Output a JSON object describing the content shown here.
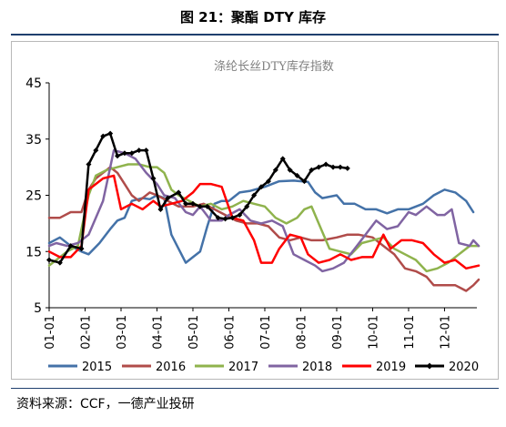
{
  "figure": {
    "title": "图 21：聚酯 DTY 库存",
    "source": "资料来源：CCF，一德产业投研"
  },
  "chart_data": {
    "type": "line",
    "title": "涤纶长丝DTY库存指数",
    "xlabel": "",
    "ylabel": "",
    "ylim": [
      5,
      45
    ],
    "yticks": [
      5,
      15,
      25,
      35,
      45
    ],
    "x_ticks": [
      "01-01",
      "02-01",
      "03-01",
      "04-01",
      "05-01",
      "06-01",
      "07-01",
      "08-01",
      "09-01",
      "10-01",
      "11-01",
      "12-01"
    ],
    "x_domain": [
      1,
      12.9
    ],
    "grid": false,
    "legend": "bottom",
    "series": [
      {
        "name": "2015",
        "color": "#4472a8",
        "points": [
          [
            1.0,
            16.5
          ],
          [
            1.3,
            17.5
          ],
          [
            1.6,
            16.0
          ],
          [
            1.9,
            15.0
          ],
          [
            2.1,
            14.5
          ],
          [
            2.4,
            16.5
          ],
          [
            2.7,
            19.0
          ],
          [
            2.9,
            20.5
          ],
          [
            3.1,
            21.0
          ],
          [
            3.3,
            24.0
          ],
          [
            3.6,
            24.5
          ],
          [
            3.8,
            24.3
          ],
          [
            4.0,
            25.0
          ],
          [
            4.2,
            24.5
          ],
          [
            4.4,
            18.0
          ],
          [
            4.6,
            15.5
          ],
          [
            4.8,
            13.0
          ],
          [
            5.0,
            14.0
          ],
          [
            5.2,
            15.0
          ],
          [
            5.4,
            19.5
          ],
          [
            5.6,
            23.5
          ],
          [
            5.8,
            24.0
          ],
          [
            6.0,
            24.0
          ],
          [
            6.3,
            25.5
          ],
          [
            6.6,
            25.8
          ],
          [
            7.0,
            26.5
          ],
          [
            7.4,
            27.5
          ],
          [
            7.8,
            27.6
          ],
          [
            8.2,
            27.4
          ],
          [
            8.4,
            25.5
          ],
          [
            8.6,
            24.5
          ],
          [
            9.0,
            25.0
          ],
          [
            9.2,
            23.5
          ],
          [
            9.5,
            23.5
          ],
          [
            9.8,
            22.5
          ],
          [
            10.1,
            22.5
          ],
          [
            10.4,
            21.8
          ],
          [
            10.7,
            22.5
          ],
          [
            11.0,
            22.5
          ],
          [
            11.4,
            23.5
          ],
          [
            11.7,
            25.0
          ],
          [
            12.0,
            26.0
          ],
          [
            12.3,
            25.5
          ],
          [
            12.6,
            24.0
          ],
          [
            12.8,
            22.0
          ]
        ]
      },
      {
        "name": "2016",
        "color": "#b04c4a",
        "points": [
          [
            1.0,
            21.0
          ],
          [
            1.3,
            21.0
          ],
          [
            1.6,
            22.0
          ],
          [
            1.9,
            22.0
          ],
          [
            2.1,
            26.0
          ],
          [
            2.3,
            28.0
          ],
          [
            2.5,
            29.0
          ],
          [
            2.7,
            30.0
          ],
          [
            2.9,
            29.0
          ],
          [
            3.1,
            27.0
          ],
          [
            3.3,
            25.0
          ],
          [
            3.5,
            24.0
          ],
          [
            3.8,
            25.5
          ],
          [
            4.0,
            25.0
          ],
          [
            4.3,
            24.0
          ],
          [
            4.6,
            23.0
          ],
          [
            5.0,
            23.0
          ],
          [
            5.3,
            23.5
          ],
          [
            5.6,
            22.5
          ],
          [
            5.9,
            21.5
          ],
          [
            6.2,
            20.5
          ],
          [
            6.5,
            20.0
          ],
          [
            6.8,
            20.0
          ],
          [
            7.1,
            19.5
          ],
          [
            7.4,
            17.5
          ],
          [
            7.7,
            17.0
          ],
          [
            8.0,
            17.5
          ],
          [
            8.3,
            17.0
          ],
          [
            8.6,
            17.0
          ],
          [
            9.0,
            17.5
          ],
          [
            9.3,
            18.0
          ],
          [
            9.6,
            18.0
          ],
          [
            10.0,
            17.5
          ],
          [
            10.3,
            16.0
          ],
          [
            10.6,
            14.5
          ],
          [
            10.9,
            12.0
          ],
          [
            11.2,
            11.5
          ],
          [
            11.5,
            10.5
          ],
          [
            11.7,
            9.0
          ],
          [
            12.0,
            9.0
          ],
          [
            12.3,
            9.0
          ],
          [
            12.6,
            8.0
          ],
          [
            12.8,
            9.0
          ],
          [
            12.95,
            10.0
          ]
        ]
      },
      {
        "name": "2017",
        "color": "#8fb34d",
        "points": [
          [
            1.0,
            12.5
          ],
          [
            1.2,
            13.5
          ],
          [
            1.5,
            15.0
          ],
          [
            1.8,
            16.0
          ],
          [
            2.1,
            25.0
          ],
          [
            2.3,
            28.5
          ],
          [
            2.6,
            29.5
          ],
          [
            2.9,
            30.0
          ],
          [
            3.2,
            30.5
          ],
          [
            3.5,
            30.5
          ],
          [
            3.8,
            30.0
          ],
          [
            4.0,
            30.0
          ],
          [
            4.2,
            29.0
          ],
          [
            4.4,
            26.0
          ],
          [
            4.6,
            25.0
          ],
          [
            4.9,
            24.0
          ],
          [
            5.2,
            23.0
          ],
          [
            5.5,
            23.5
          ],
          [
            5.8,
            22.5
          ],
          [
            6.1,
            23.0
          ],
          [
            6.4,
            24.0
          ],
          [
            6.7,
            23.5
          ],
          [
            7.0,
            23.0
          ],
          [
            7.3,
            21.0
          ],
          [
            7.6,
            20.0
          ],
          [
            7.9,
            21.0
          ],
          [
            8.1,
            22.5
          ],
          [
            8.3,
            23.0
          ],
          [
            8.5,
            20.0
          ],
          [
            8.8,
            15.5
          ],
          [
            9.1,
            15.0
          ],
          [
            9.4,
            14.5
          ],
          [
            9.7,
            16.5
          ],
          [
            10.0,
            17.0
          ],
          [
            10.3,
            17.5
          ],
          [
            10.6,
            15.5
          ],
          [
            10.9,
            14.5
          ],
          [
            11.2,
            13.5
          ],
          [
            11.5,
            11.5
          ],
          [
            11.8,
            12.0
          ],
          [
            12.1,
            13.0
          ],
          [
            12.4,
            14.5
          ],
          [
            12.7,
            16.0
          ],
          [
            12.95,
            16.0
          ]
        ]
      },
      {
        "name": "2018",
        "color": "#8064a2",
        "points": [
          [
            1.0,
            16.0
          ],
          [
            1.2,
            16.5
          ],
          [
            1.5,
            16.0
          ],
          [
            1.8,
            16.5
          ],
          [
            2.1,
            18.0
          ],
          [
            2.3,
            21.0
          ],
          [
            2.5,
            24.0
          ],
          [
            2.8,
            33.0
          ],
          [
            3.1,
            32.5
          ],
          [
            3.4,
            31.5
          ],
          [
            3.7,
            29.0
          ],
          [
            4.0,
            27.0
          ],
          [
            4.2,
            25.0
          ],
          [
            4.5,
            24.5
          ],
          [
            4.8,
            22.0
          ],
          [
            5.0,
            21.5
          ],
          [
            5.2,
            23.0
          ],
          [
            5.5,
            20.5
          ],
          [
            5.8,
            20.5
          ],
          [
            6.0,
            21.5
          ],
          [
            6.3,
            22.5
          ],
          [
            6.6,
            20.5
          ],
          [
            6.9,
            20.0
          ],
          [
            7.2,
            20.5
          ],
          [
            7.5,
            19.5
          ],
          [
            7.8,
            14.5
          ],
          [
            8.1,
            13.5
          ],
          [
            8.4,
            12.5
          ],
          [
            8.6,
            11.5
          ],
          [
            8.9,
            12.0
          ],
          [
            9.2,
            13.0
          ],
          [
            9.5,
            15.5
          ],
          [
            9.8,
            18.0
          ],
          [
            10.1,
            20.5
          ],
          [
            10.4,
            19.0
          ],
          [
            10.7,
            19.5
          ],
          [
            11.0,
            22.0
          ],
          [
            11.2,
            21.5
          ],
          [
            11.5,
            23.0
          ],
          [
            11.8,
            21.5
          ],
          [
            12.0,
            21.5
          ],
          [
            12.2,
            22.5
          ],
          [
            12.4,
            16.5
          ],
          [
            12.7,
            16.0
          ],
          [
            12.8,
            17.0
          ],
          [
            12.95,
            16.0
          ]
        ]
      },
      {
        "name": "2019",
        "color": "#ff0000",
        "points": [
          [
            1.0,
            15.0
          ],
          [
            1.3,
            14.0
          ],
          [
            1.6,
            14.0
          ],
          [
            1.9,
            16.0
          ],
          [
            2.1,
            26.0
          ],
          [
            2.3,
            27.0
          ],
          [
            2.5,
            28.0
          ],
          [
            2.8,
            28.5
          ],
          [
            3.0,
            22.5
          ],
          [
            3.3,
            23.5
          ],
          [
            3.6,
            22.5
          ],
          [
            3.9,
            24.0
          ],
          [
            4.1,
            23.0
          ],
          [
            4.4,
            23.5
          ],
          [
            4.7,
            24.0
          ],
          [
            5.0,
            25.5
          ],
          [
            5.2,
            27.0
          ],
          [
            5.5,
            27.0
          ],
          [
            5.8,
            26.5
          ],
          [
            6.1,
            21.0
          ],
          [
            6.4,
            20.5
          ],
          [
            6.7,
            17.0
          ],
          [
            6.9,
            13.0
          ],
          [
            7.2,
            13.0
          ],
          [
            7.4,
            15.5
          ],
          [
            7.7,
            18.0
          ],
          [
            8.0,
            17.5
          ],
          [
            8.2,
            14.5
          ],
          [
            8.5,
            13.0
          ],
          [
            8.8,
            13.5
          ],
          [
            9.1,
            14.5
          ],
          [
            9.4,
            13.5
          ],
          [
            9.7,
            14.0
          ],
          [
            10.0,
            14.0
          ],
          [
            10.3,
            18.0
          ],
          [
            10.5,
            15.5
          ],
          [
            10.8,
            17.0
          ],
          [
            11.1,
            17.0
          ],
          [
            11.4,
            16.5
          ],
          [
            11.7,
            14.5
          ],
          [
            12.0,
            13.0
          ],
          [
            12.3,
            13.5
          ],
          [
            12.6,
            12.0
          ],
          [
            12.95,
            12.5
          ]
        ]
      },
      {
        "name": "2020",
        "color": "#000000",
        "marker": "diamond",
        "points": [
          [
            1.0,
            13.5
          ],
          [
            1.3,
            13.0
          ],
          [
            1.6,
            16.0
          ],
          [
            1.9,
            15.5
          ],
          [
            2.1,
            30.5
          ],
          [
            2.3,
            33.0
          ],
          [
            2.5,
            35.5
          ],
          [
            2.7,
            36.0
          ],
          [
            2.9,
            32.0
          ],
          [
            3.1,
            32.5
          ],
          [
            3.3,
            32.5
          ],
          [
            3.5,
            33.0
          ],
          [
            3.7,
            33.0
          ],
          [
            3.9,
            28.0
          ],
          [
            4.1,
            22.5
          ],
          [
            4.3,
            24.5
          ],
          [
            4.6,
            25.5
          ],
          [
            4.8,
            23.5
          ],
          [
            5.0,
            23.5
          ],
          [
            5.2,
            23.0
          ],
          [
            5.4,
            23.0
          ],
          [
            5.7,
            21.0
          ],
          [
            5.9,
            20.8
          ],
          [
            6.1,
            21.0
          ],
          [
            6.3,
            21.5
          ],
          [
            6.5,
            23.0
          ],
          [
            6.7,
            25.0
          ],
          [
            6.9,
            26.5
          ],
          [
            7.1,
            27.5
          ],
          [
            7.3,
            29.5
          ],
          [
            7.5,
            31.5
          ],
          [
            7.7,
            29.5
          ],
          [
            7.9,
            28.5
          ],
          [
            8.1,
            27.5
          ],
          [
            8.3,
            29.5
          ],
          [
            8.5,
            30.0
          ],
          [
            8.7,
            30.5
          ],
          [
            8.9,
            30.0
          ],
          [
            9.1,
            30.0
          ],
          [
            9.3,
            29.8
          ]
        ]
      }
    ]
  }
}
